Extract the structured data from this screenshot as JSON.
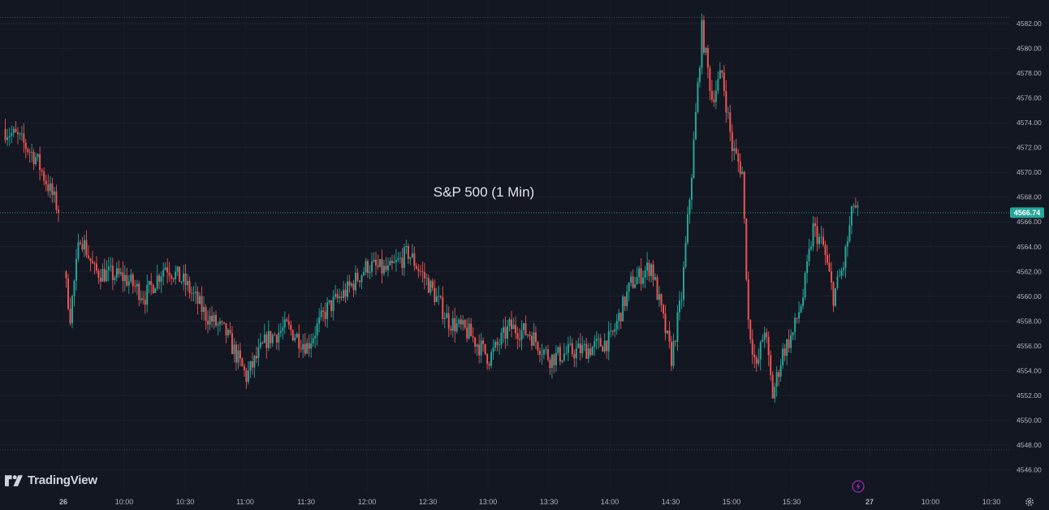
{
  "chart_data": {
    "type": "candlestick",
    "title": "S&P 500 (1 Min)",
    "ylim": [
      4545,
      4583.5
    ],
    "y_ticks": [
      4546,
      4548,
      4550,
      4552,
      4554,
      4556,
      4558,
      4560,
      4562,
      4564,
      4566,
      4568,
      4570,
      4572,
      4574,
      4576,
      4578,
      4580,
      4582
    ],
    "y_tick_labels": [
      "4546.00",
      "4548.00",
      "4550.00",
      "4552.00",
      "4554.00",
      "4556.00",
      "4558.00",
      "4560.00",
      "4562.00",
      "4564.00",
      "4566.00",
      "4568.00",
      "4570.00",
      "4572.00",
      "4574.00",
      "4576.00",
      "4578.00",
      "4580.00",
      "4582.00"
    ],
    "x_tick_labels": [
      "26",
      "10:00",
      "10:30",
      "11:00",
      "11:30",
      "12:00",
      "12:30",
      "13:00",
      "13:30",
      "14:00",
      "14:30",
      "15:00",
      "15:30",
      "27",
      "10:00",
      "10:30"
    ],
    "last_price": 4566.74,
    "last_price_label": "4566.74",
    "session_high_line": 4582.5,
    "session_low_line": 4547.6,
    "grid": true,
    "up_color": "#26a69a",
    "down_color": "#ef5350",
    "price_path": [
      [
        "26-prev",
        4573.5
      ],
      [
        "26-prev+",
        4572.8
      ],
      [
        "26-prev++",
        4571.2
      ],
      [
        "26-close-prev",
        4567.0
      ],
      [
        "09:30",
        4562.0
      ],
      [
        "09:33",
        4558.5
      ],
      [
        "09:38",
        4565.0
      ],
      [
        "09:45",
        4562.0
      ],
      [
        "10:00",
        4561.5
      ],
      [
        "10:10",
        4560.0
      ],
      [
        "10:20",
        4562.5
      ],
      [
        "10:30",
        4561.0
      ],
      [
        "10:40",
        4558.5
      ],
      [
        "10:50",
        4557.0
      ],
      [
        "11:00",
        4553.5
      ],
      [
        "11:10",
        4556.5
      ],
      [
        "11:20",
        4557.5
      ],
      [
        "11:30",
        4556.0
      ],
      [
        "11:40",
        4559.0
      ],
      [
        "11:50",
        4560.5
      ],
      [
        "12:00",
        4562.5
      ],
      [
        "12:10",
        4562.0
      ],
      [
        "12:20",
        4563.5
      ],
      [
        "12:30",
        4561.0
      ],
      [
        "12:40",
        4558.0
      ],
      [
        "12:50",
        4557.0
      ],
      [
        "13:00",
        4555.0
      ],
      [
        "13:10",
        4557.5
      ],
      [
        "13:20",
        4557.0
      ],
      [
        "13:30",
        4555.0
      ],
      [
        "13:40",
        4555.5
      ],
      [
        "13:50",
        4555.8
      ],
      [
        "14:00",
        4556.5
      ],
      [
        "14:10",
        4561.0
      ],
      [
        "14:20",
        4562.5
      ],
      [
        "14:30",
        4555.0
      ],
      [
        "14:35",
        4560.0
      ],
      [
        "14:40",
        4570.0
      ],
      [
        "14:45",
        4581.5
      ],
      [
        "14:50",
        4576.0
      ],
      [
        "14:55",
        4578.0
      ],
      [
        "15:00",
        4572.0
      ],
      [
        "15:05",
        4570.0
      ],
      [
        "15:08",
        4558.0
      ],
      [
        "15:12",
        4554.0
      ],
      [
        "15:16",
        4557.5
      ],
      [
        "15:20",
        4552.0
      ],
      [
        "15:25",
        4555.5
      ],
      [
        "15:30",
        4557.0
      ],
      [
        "15:35",
        4560.0
      ],
      [
        "15:40",
        4565.5
      ],
      [
        "15:45",
        4564.0
      ],
      [
        "15:50",
        4560.0
      ],
      [
        "15:55",
        4562.5
      ],
      [
        "16:00",
        4567.5
      ],
      [
        "16:02",
        4566.7
      ]
    ]
  },
  "branding": {
    "name": "TradingView"
  },
  "icons": {
    "logo": "tradingview-logo-icon",
    "events": "lightning-icon",
    "settings": "gear-icon"
  }
}
